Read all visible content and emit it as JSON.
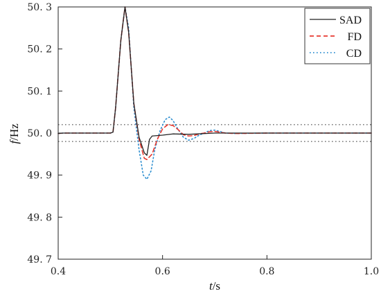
{
  "chart_data": {
    "type": "line",
    "title": "",
    "xlabel": "t/s",
    "ylabel": "f/Hz",
    "xlabel_parts": {
      "var": "t",
      "unit": "/s"
    },
    "ylabel_parts": {
      "var": "f",
      "unit": "/Hz"
    },
    "xlim": [
      0.4,
      1.0
    ],
    "ylim": [
      49.7,
      50.3
    ],
    "x_ticks": [
      0.4,
      0.6,
      0.8,
      1.0
    ],
    "x_tick_labels": [
      "0.4",
      "0.6",
      "0.8",
      "1.0"
    ],
    "y_ticks": [
      49.7,
      49.8,
      49.9,
      50.0,
      50.1,
      50.2,
      50.3
    ],
    "y_tick_labels": [
      "49. 7",
      "49. 8",
      "49. 9",
      "50. 0",
      "50. 1",
      "50. 2",
      "50. 3"
    ],
    "grid": false,
    "legend_position": "top-right",
    "reference_lines": [
      {
        "y": 50.02,
        "style": "dotted",
        "color": "#333333"
      },
      {
        "y": 49.98,
        "style": "dotted",
        "color": "#333333"
      }
    ],
    "series": [
      {
        "name": "SAD",
        "color": "#222222",
        "style": "solid",
        "x": [
          0.4,
          0.41,
          0.45,
          0.5,
          0.505,
          0.51,
          0.52,
          0.528,
          0.535,
          0.545,
          0.555,
          0.565,
          0.57,
          0.575,
          0.58,
          0.6,
          0.62,
          0.65,
          0.7,
          0.8,
          0.9,
          1.0
        ],
        "y": [
          49.999,
          50.0,
          50.0,
          50.0,
          50.002,
          50.06,
          50.22,
          50.3,
          50.24,
          50.07,
          49.99,
          49.953,
          49.947,
          49.985,
          49.993,
          49.995,
          49.998,
          49.997,
          50.0,
          50.0,
          50.0,
          50.0
        ]
      },
      {
        "name": "FD",
        "color": "#e8382f",
        "style": "dashed",
        "x": [
          0.4,
          0.41,
          0.45,
          0.5,
          0.505,
          0.51,
          0.52,
          0.528,
          0.535,
          0.545,
          0.555,
          0.565,
          0.57,
          0.58,
          0.59,
          0.6,
          0.61,
          0.62,
          0.63,
          0.64,
          0.65,
          0.66,
          0.67,
          0.68,
          0.69,
          0.7,
          0.71,
          0.72,
          0.74,
          0.8,
          0.9,
          1.0
        ],
        "y": [
          49.999,
          50.0,
          50.0,
          50.0,
          50.002,
          50.06,
          50.22,
          50.3,
          50.24,
          50.07,
          49.985,
          49.94,
          49.937,
          49.95,
          49.985,
          50.01,
          50.02,
          50.018,
          50.008,
          49.996,
          49.993,
          49.994,
          49.998,
          50.0,
          50.003,
          50.004,
          50.002,
          50.0,
          49.999,
          50.0,
          50.0,
          50.0
        ]
      },
      {
        "name": "CD",
        "color": "#2e8fd0",
        "style": "dotted",
        "x": [
          0.4,
          0.41,
          0.45,
          0.5,
          0.505,
          0.51,
          0.52,
          0.528,
          0.535,
          0.545,
          0.555,
          0.563,
          0.57,
          0.578,
          0.585,
          0.595,
          0.605,
          0.613,
          0.62,
          0.63,
          0.64,
          0.65,
          0.66,
          0.67,
          0.68,
          0.69,
          0.7,
          0.71,
          0.72,
          0.74,
          0.8,
          0.9,
          1.0
        ],
        "y": [
          49.999,
          50.0,
          50.0,
          50.0,
          50.002,
          50.06,
          50.22,
          50.3,
          50.25,
          50.06,
          49.96,
          49.9,
          49.89,
          49.91,
          49.96,
          50.005,
          50.032,
          50.038,
          50.03,
          50.008,
          49.99,
          49.983,
          49.987,
          49.995,
          50.0,
          50.006,
          50.007,
          50.004,
          50.0,
          49.999,
          50.0,
          50.0,
          50.0
        ]
      }
    ]
  }
}
